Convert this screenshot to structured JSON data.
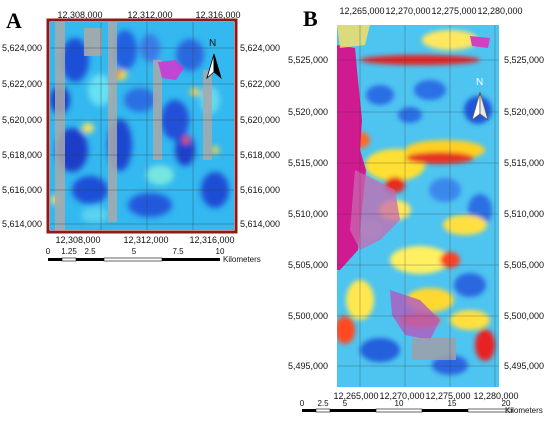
{
  "panels": [
    {
      "letter": "A",
      "top_ticks": [
        "12,308,000",
        "12,312,000",
        "12,316,000"
      ],
      "bottom_ticks": [
        "12,308,000",
        "12,312,000",
        "12,316,000"
      ],
      "left_ticks": [
        "5,624,000",
        "5,622,000",
        "5,620,000",
        "5,618,000",
        "5,616,000",
        "5,614,000"
      ],
      "right_ticks": [
        "5,624,000",
        "5,622,000",
        "5,620,000",
        "5,618,000",
        "5,616,000",
        "5,614,000"
      ],
      "scale_labels": [
        "0",
        "1.25",
        "2.5",
        "5",
        "7.5",
        "10"
      ],
      "scale_unit": "Kilometers",
      "north_label": "N"
    },
    {
      "letter": "B",
      "top_ticks": [
        "12,265,000",
        "12,270,000",
        "12,275,000",
        "12,280,000"
      ],
      "bottom_ticks": [
        "12,265,000",
        "12,270,000",
        "12,275,000",
        "12,280,000"
      ],
      "left_ticks": [
        "5,525,000",
        "5,520,000",
        "5,515,000",
        "5,510,000",
        "5,505,000",
        "5,500,000",
        "5,495,000"
      ],
      "right_ticks": [
        "5,525,000",
        "5,520,000",
        "5,515,000",
        "5,510,000",
        "5,505,000",
        "5,500,000",
        "5,495,000"
      ],
      "scale_labels": [
        "0",
        "2.5",
        "5",
        "10",
        "15",
        "20"
      ],
      "scale_unit": "Kilometers",
      "north_label": "N"
    }
  ]
}
